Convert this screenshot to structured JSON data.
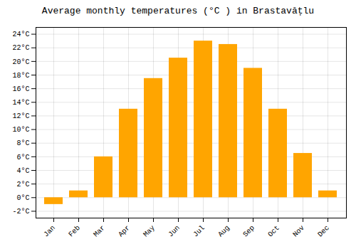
{
  "chart_data": {
    "type": "bar",
    "title": "Average monthly temperatures (°C ) in Brastavățlu",
    "categories": [
      "Jan",
      "Feb",
      "Mar",
      "Apr",
      "May",
      "Jun",
      "Jul",
      "Aug",
      "Sep",
      "Oct",
      "Nov",
      "Dec"
    ],
    "values": [
      -1.0,
      1.0,
      6.0,
      13.0,
      17.5,
      20.5,
      23.0,
      22.5,
      19.0,
      13.0,
      6.5,
      1.0
    ],
    "color": "#FFA500",
    "ylim": [
      -3.0,
      25.0
    ],
    "yticks": [
      {
        "value": -2,
        "label": "-2°C"
      },
      {
        "value": 0,
        "label": "0°C"
      },
      {
        "value": 2,
        "label": "2°C"
      },
      {
        "value": 4,
        "label": "4°C"
      },
      {
        "value": 6,
        "label": "6°C"
      },
      {
        "value": 8,
        "label": "8°C"
      },
      {
        "value": 10,
        "label": "10°C"
      },
      {
        "value": 12,
        "label": "12°C"
      },
      {
        "value": 14,
        "label": "14°C"
      },
      {
        "value": 16,
        "label": "16°C"
      },
      {
        "value": 18,
        "label": "18°C"
      },
      {
        "value": 20,
        "label": "20°C"
      },
      {
        "value": 22,
        "label": "22°C"
      },
      {
        "value": 24,
        "label": "24°C"
      }
    ],
    "grid": true
  }
}
